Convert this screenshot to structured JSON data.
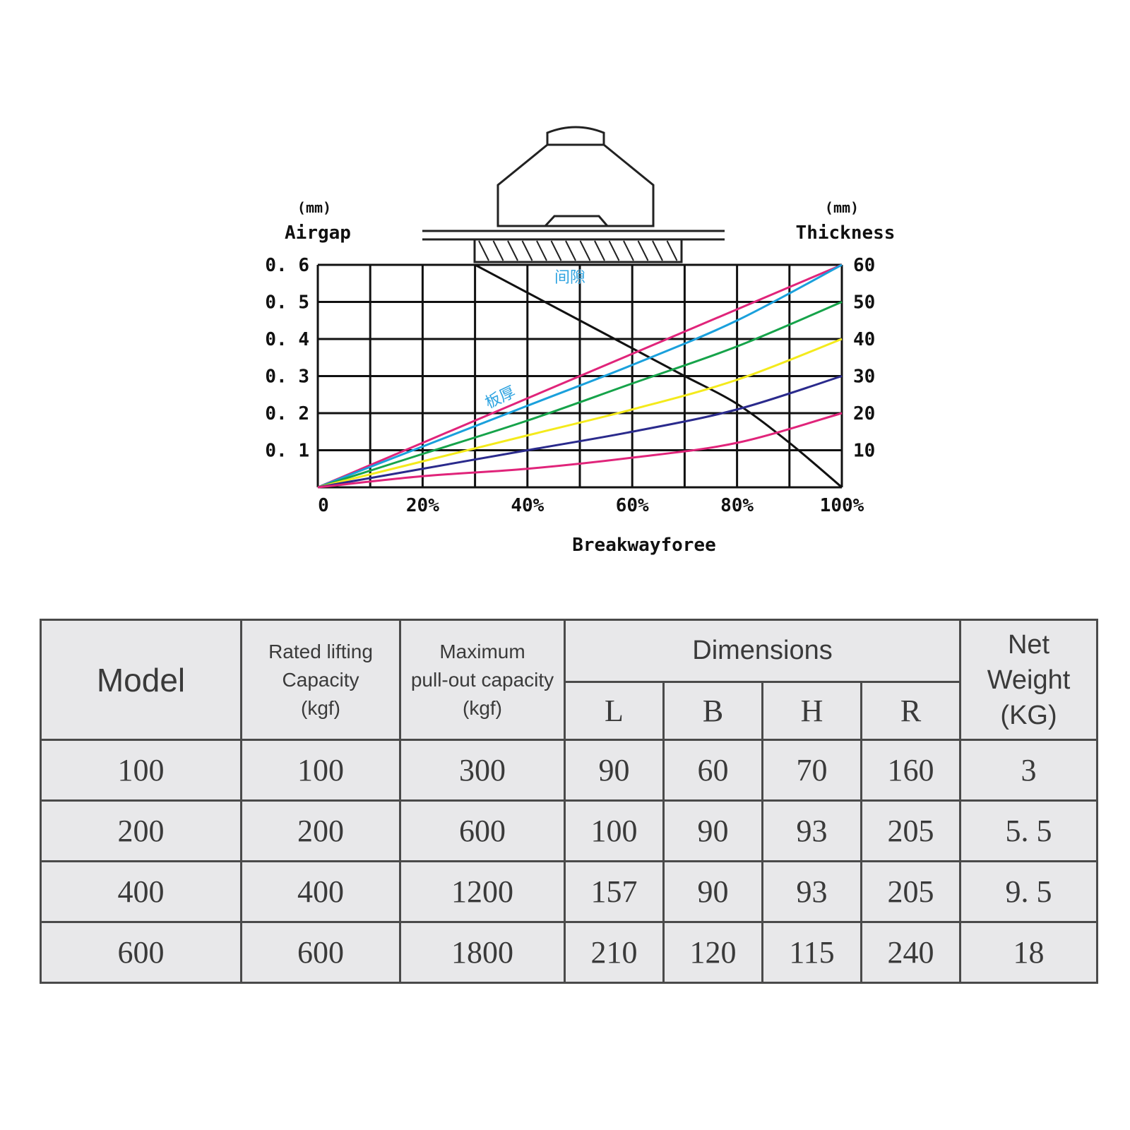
{
  "chart_data": {
    "type": "line",
    "xlabel": "Breakwayforee",
    "x_ticks": [
      "0",
      "20%",
      "40%",
      "60%",
      "80%",
      "100%"
    ],
    "left_axis": {
      "label": "Airgap",
      "unit": "(mm)",
      "ticks": [
        "0. 1",
        "0. 2",
        "0. 3",
        "0. 4",
        "0. 5",
        "0. 6"
      ],
      "ylim": [
        0,
        0.6
      ]
    },
    "right_axis": {
      "label": "Thickness",
      "unit": "(mm)",
      "ticks": [
        "10",
        "20",
        "30",
        "40",
        "50",
        "60"
      ],
      "ylim": [
        0,
        60
      ]
    },
    "annotations": {
      "airgap_curve": "间隙",
      "thickness_curves": "板厚"
    },
    "series": [
      {
        "axis": "left",
        "color": "#111111",
        "x": [
          0.3,
          0.4,
          0.5,
          0.6,
          0.7,
          0.8,
          0.9,
          1.0
        ],
        "y": [
          0.6,
          0.525,
          0.45,
          0.375,
          0.3,
          0.225,
          0.12,
          0.0
        ]
      },
      {
        "axis": "right",
        "color": "#e0247a",
        "x": [
          0,
          0.2,
          0.4,
          0.6,
          0.8,
          1.0
        ],
        "y": [
          0,
          12,
          24,
          36,
          48,
          60
        ]
      },
      {
        "axis": "right",
        "color": "#1aa0dc",
        "x": [
          0,
          0.2,
          0.4,
          0.6,
          0.8,
          1.0
        ],
        "y": [
          0,
          11,
          22,
          33,
          45,
          60
        ]
      },
      {
        "axis": "right",
        "color": "#16a34a",
        "x": [
          0,
          0.2,
          0.4,
          0.6,
          0.8,
          1.0
        ],
        "y": [
          0,
          9,
          18,
          28,
          38,
          50
        ]
      },
      {
        "axis": "right",
        "color": "#f4ea1c",
        "x": [
          0,
          0.2,
          0.4,
          0.6,
          0.8,
          1.0
        ],
        "y": [
          0,
          7,
          14,
          21,
          29,
          40
        ]
      },
      {
        "axis": "right",
        "color": "#2a2a8c",
        "x": [
          0,
          0.2,
          0.4,
          0.6,
          0.8,
          1.0
        ],
        "y": [
          0,
          5,
          10,
          15,
          21,
          30
        ]
      },
      {
        "axis": "right",
        "color": "#e0247a",
        "x": [
          0,
          0.2,
          0.4,
          0.6,
          0.8,
          1.0
        ],
        "y": [
          0,
          3,
          5,
          8,
          12,
          20
        ]
      }
    ],
    "grid": true
  },
  "table": {
    "headers": {
      "model": "Model",
      "rated": [
        "Rated lifting",
        "Capacity",
        "(kgf)"
      ],
      "maxpull": [
        "Maximum",
        "pull-out capacity",
        "(kgf)"
      ],
      "dimensions": "Dimensions",
      "dims": [
        "L",
        "B",
        "H",
        "R"
      ],
      "weight": [
        "Net",
        "Weight",
        "(KG)"
      ]
    },
    "rows": [
      [
        "100",
        "100",
        "300",
        "90",
        "60",
        "70",
        "160",
        "3"
      ],
      [
        "200",
        "200",
        "600",
        "100",
        "90",
        "93",
        "205",
        "5. 5"
      ],
      [
        "400",
        "400",
        "1200",
        "157",
        "90",
        "93",
        "205",
        "9. 5"
      ],
      [
        "600",
        "600",
        "1800",
        "210",
        "120",
        "115",
        "240",
        "18"
      ]
    ]
  }
}
